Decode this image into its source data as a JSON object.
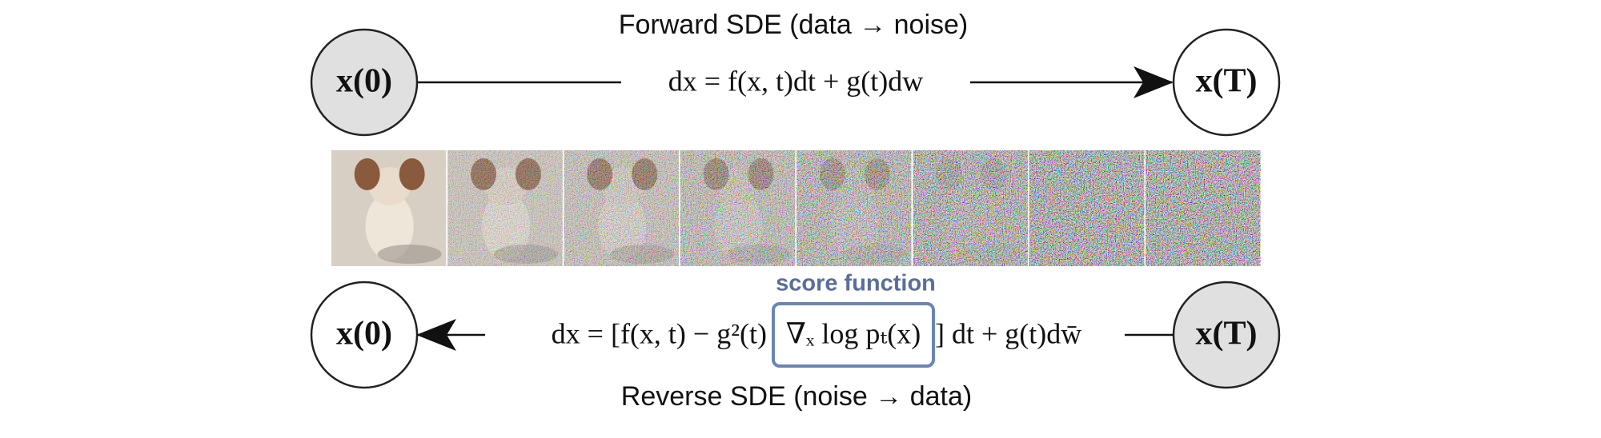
{
  "forward_title": "Forward SDE (data → noise)",
  "reverse_title": "Reverse SDE (noise → data)",
  "nodes": [
    {
      "label": "x(0)"
    },
    {
      "label": "x(T)"
    },
    {
      "label": "x(0)"
    },
    {
      "label": "x(T)"
    }
  ],
  "forward_equation": "dx = f(x, t)dt + g(t)dw",
  "reverse_equation": {
    "left": "dx = [f(x, t) − g²(t)",
    "score": "∇ₓ log pₜ(x)",
    "right": "] dt + g(t)dw̄"
  },
  "score_label": "score function"
}
